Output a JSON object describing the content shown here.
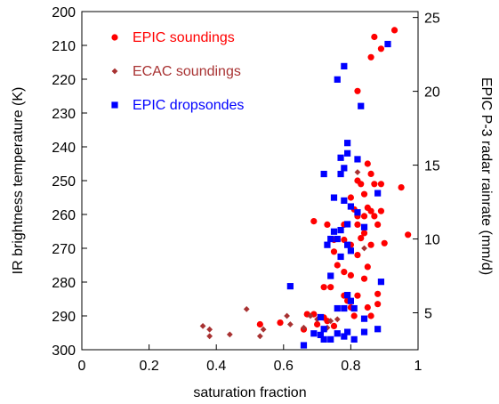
{
  "chart_data": {
    "type": "scatter",
    "xlabel": "saturation fraction",
    "ylabel": "IR brightness temperature (K)",
    "y2label": "EPIC P-3 radar rainrate (mm/d)",
    "xlim": [
      0,
      1
    ],
    "ylim": [
      300,
      200
    ],
    "y2lim": [
      2.5,
      25.4
    ],
    "x_ticks": [
      0,
      0.2,
      0.4,
      0.6,
      0.8,
      1
    ],
    "x_tick_labels": [
      "0",
      "0.2",
      "0.4",
      "0.6",
      "0.8",
      "1"
    ],
    "y_ticks": [
      200,
      210,
      220,
      230,
      240,
      250,
      260,
      270,
      280,
      290,
      300
    ],
    "y_tick_labels": [
      "200",
      "210",
      "220",
      "230",
      "240",
      "250",
      "260",
      "270",
      "280",
      "290",
      "300"
    ],
    "y2_ticks": [
      5,
      10,
      15,
      20,
      25
    ],
    "y2_tick_labels": [
      "5",
      "10",
      "15",
      "20",
      "25"
    ],
    "grid": false,
    "legend_position": "top-left",
    "series": [
      {
        "name": "EPIC soundings",
        "marker": "circle",
        "color": "#ff0000",
        "axis": "left",
        "points": [
          [
            0.93,
            205.5
          ],
          [
            0.87,
            207.5
          ],
          [
            0.89,
            211
          ],
          [
            0.86,
            213.5
          ],
          [
            0.82,
            223.5
          ],
          [
            0.85,
            245
          ],
          [
            0.86,
            248
          ],
          [
            0.82,
            250
          ],
          [
            0.83,
            251
          ],
          [
            0.87,
            251
          ],
          [
            0.89,
            251
          ],
          [
            0.95,
            252
          ],
          [
            0.84,
            254
          ],
          [
            0.8,
            255
          ],
          [
            0.81,
            258.5
          ],
          [
            0.85,
            258
          ],
          [
            0.86,
            259
          ],
          [
            0.82,
            260.5
          ],
          [
            0.84,
            260.5
          ],
          [
            0.87,
            260.5
          ],
          [
            0.89,
            259
          ],
          [
            0.69,
            262
          ],
          [
            0.73,
            263
          ],
          [
            0.78,
            263
          ],
          [
            0.82,
            263
          ],
          [
            0.88,
            263
          ],
          [
            0.84,
            265.5
          ],
          [
            0.97,
            266
          ],
          [
            0.75,
            267.5
          ],
          [
            0.78,
            267.5
          ],
          [
            0.83,
            267
          ],
          [
            0.8,
            269
          ],
          [
            0.86,
            269
          ],
          [
            0.9,
            268.5
          ],
          [
            0.75,
            271
          ],
          [
            0.82,
            272
          ],
          [
            0.76,
            275
          ],
          [
            0.85,
            275.5
          ],
          [
            0.78,
            277
          ],
          [
            0.8,
            278
          ],
          [
            0.84,
            279
          ],
          [
            0.72,
            281.5
          ],
          [
            0.74,
            281.5
          ],
          [
            0.78,
            284
          ],
          [
            0.82,
            284
          ],
          [
            0.88,
            283.5
          ],
          [
            0.79,
            285.5
          ],
          [
            0.8,
            287.5
          ],
          [
            0.85,
            287.5
          ],
          [
            0.88,
            286.5
          ],
          [
            0.67,
            289.5
          ],
          [
            0.69,
            289.5
          ],
          [
            0.72,
            290.5
          ],
          [
            0.86,
            290
          ],
          [
            0.53,
            292.5
          ],
          [
            0.59,
            292
          ],
          [
            0.73,
            291.5
          ],
          [
            0.66,
            294
          ],
          [
            0.7,
            292.5
          ],
          [
            0.75,
            293
          ],
          [
            0.81,
            290
          ]
        ]
      },
      {
        "name": "ECAC soundings",
        "marker": "diamond",
        "color": "#a83232",
        "axis": "left",
        "points": [
          [
            0.36,
            293
          ],
          [
            0.38,
            294
          ],
          [
            0.38,
            296
          ],
          [
            0.44,
            295.5
          ],
          [
            0.49,
            288
          ],
          [
            0.53,
            296
          ],
          [
            0.54,
            294
          ],
          [
            0.61,
            290
          ],
          [
            0.62,
            292.5
          ],
          [
            0.66,
            293.5
          ],
          [
            0.68,
            290
          ],
          [
            0.7,
            291
          ],
          [
            0.73,
            293.5
          ],
          [
            0.74,
            291.5
          ],
          [
            0.76,
            291
          ],
          [
            0.82,
            247.5
          ],
          [
            0.84,
            270
          ]
        ]
      },
      {
        "name": "EPIC dropsondes",
        "marker": "square",
        "color": "#0000ff",
        "axis": "right",
        "points": [
          [
            0.91,
            23.2
          ],
          [
            0.78,
            21.7
          ],
          [
            0.76,
            20.8
          ],
          [
            0.83,
            19.0
          ],
          [
            0.79,
            16.5
          ],
          [
            0.79,
            15.8
          ],
          [
            0.77,
            15.5
          ],
          [
            0.78,
            14.8
          ],
          [
            0.72,
            14.4
          ],
          [
            0.77,
            14.4
          ],
          [
            0.82,
            15.4
          ],
          [
            0.78,
            12.6
          ],
          [
            0.75,
            12.8
          ],
          [
            0.88,
            13.1
          ],
          [
            0.8,
            12.2
          ],
          [
            0.82,
            11.8
          ],
          [
            0.79,
            11.0
          ],
          [
            0.77,
            10.6
          ],
          [
            0.75,
            10.5
          ],
          [
            0.76,
            10.0
          ],
          [
            0.79,
            9.6
          ],
          [
            0.74,
            10.0
          ],
          [
            0.73,
            9.6
          ],
          [
            0.8,
            9.2
          ],
          [
            0.84,
            10.8
          ],
          [
            0.77,
            8.8
          ],
          [
            0.74,
            7.5
          ],
          [
            0.89,
            7.1
          ],
          [
            0.62,
            6.8
          ],
          [
            0.79,
            6.2
          ],
          [
            0.8,
            5.8
          ],
          [
            0.76,
            5.3
          ],
          [
            0.78,
            5.3
          ],
          [
            0.81,
            5.3
          ],
          [
            0.71,
            4.7
          ],
          [
            0.84,
            4.6
          ],
          [
            0.72,
            3.9
          ],
          [
            0.69,
            3.6
          ],
          [
            0.71,
            3.5
          ],
          [
            0.76,
            3.6
          ],
          [
            0.78,
            3.4
          ],
          [
            0.79,
            3.7
          ],
          [
            0.84,
            3.7
          ],
          [
            0.88,
            3.9
          ],
          [
            0.66,
            2.8
          ],
          [
            0.72,
            3.2
          ],
          [
            0.81,
            3.2
          ],
          [
            0.74,
            3.2
          ]
        ]
      }
    ]
  }
}
